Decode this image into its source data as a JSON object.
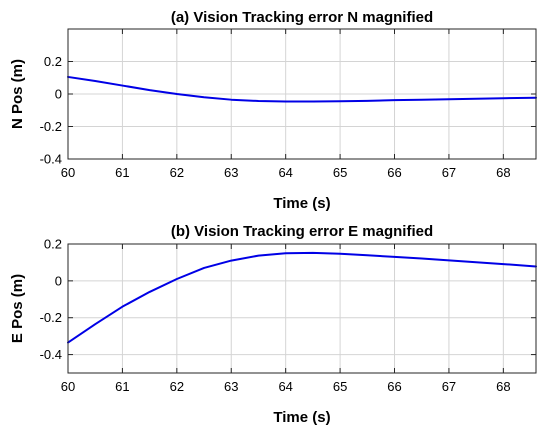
{
  "chart_data": [
    {
      "type": "line",
      "title": "(a) Vision Tracking error N magnified",
      "xlabel": "Time (s)",
      "ylabel": "N Pos (m)",
      "xlim": [
        60,
        68.6
      ],
      "ylim": [
        -0.4,
        0.4
      ],
      "xticks": [
        60,
        61,
        62,
        63,
        64,
        65,
        66,
        67,
        68
      ],
      "xtick_labels": [
        "60",
        "61",
        "62",
        "63",
        "64",
        "65",
        "66",
        "67",
        "68"
      ],
      "yticks": [
        -0.4,
        -0.2,
        0,
        0.2
      ],
      "ytick_labels": [
        "-0.4",
        "-0.2",
        "0",
        "0.2"
      ],
      "grid": true,
      "series": [
        {
          "color": "#0000e6",
          "x": [
            60,
            60.5,
            61,
            61.5,
            62,
            62.5,
            63,
            63.5,
            64,
            64.5,
            65,
            65.5,
            66,
            66.5,
            67,
            67.5,
            68,
            68.6
          ],
          "y": [
            0.105,
            0.08,
            0.052,
            0.024,
            0.0,
            -0.02,
            -0.035,
            -0.043,
            -0.046,
            -0.046,
            -0.045,
            -0.042,
            -0.038,
            -0.035,
            -0.032,
            -0.029,
            -0.026,
            -0.023
          ]
        }
      ]
    },
    {
      "type": "line",
      "title": "(b) Vision Tracking error E magnified",
      "xlabel": "Time (s)",
      "ylabel": "E Pos (m)",
      "xlim": [
        60,
        68.6
      ],
      "ylim": [
        -0.5,
        0.2
      ],
      "xticks": [
        60,
        61,
        62,
        63,
        64,
        65,
        66,
        67,
        68
      ],
      "xtick_labels": [
        "60",
        "61",
        "62",
        "63",
        "64",
        "65",
        "66",
        "67",
        "68"
      ],
      "yticks": [
        -0.4,
        -0.2,
        0,
        0.2
      ],
      "ytick_labels": [
        "-0.4",
        "-0.2",
        "0",
        "0.2"
      ],
      "grid": true,
      "series": [
        {
          "color": "#0000e6",
          "x": [
            60,
            60.5,
            61,
            61.5,
            62,
            62.5,
            63,
            63.5,
            64,
            64.5,
            65,
            65.5,
            66,
            66.5,
            67,
            67.5,
            68,
            68.6
          ],
          "y": [
            -0.335,
            -0.235,
            -0.14,
            -0.06,
            0.01,
            0.07,
            0.11,
            0.137,
            0.15,
            0.152,
            0.147,
            0.139,
            0.13,
            0.121,
            0.111,
            0.101,
            0.091,
            0.078
          ]
        }
      ]
    }
  ]
}
